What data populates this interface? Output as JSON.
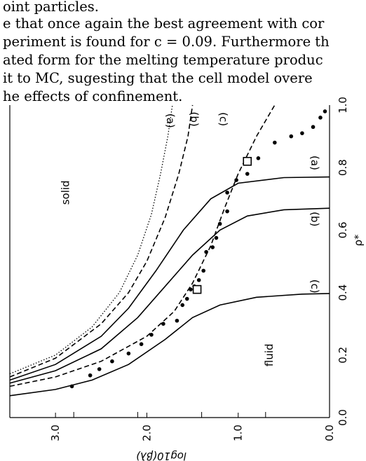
{
  "text_lines": [
    "oint particles.",
    "e that once again the best agreement with cor",
    "periment is found for c = 0.09. Furthermore th",
    "ated form for the melting temperature produc",
    "it to MC, sugesting that the cell model overe",
    "he effects of confinement."
  ],
  "chart_data": {
    "type": "line",
    "orientation": "rotated-90-clockwise",
    "xlabel": "log10(βλ)",
    "ylabel": "ρ*",
    "xlim": [
      3.5,
      0.0
    ],
    "ylim": [
      0.0,
      1.0
    ],
    "x_ticks": [
      "3.0",
      "2.0",
      "1.0",
      "0.0"
    ],
    "x_tick_values": [
      3.0,
      2.0,
      1.0,
      0.0
    ],
    "y_ticks": [
      "0.0",
      "0.2",
      "0.4",
      "0.6",
      "0.8",
      "1.0"
    ],
    "y_tick_values": [
      0.0,
      0.2,
      0.4,
      0.6,
      0.8,
      1.0
    ],
    "region_labels": [
      "solid",
      "fluid"
    ],
    "curve_labels": [
      {
        "text": "(a)",
        "x": 0.2,
        "y": 0.815
      },
      {
        "text": "(b)",
        "x": 0.2,
        "y": 0.635
      },
      {
        "text": "(c)",
        "x": 0.2,
        "y": 0.42
      },
      {
        "text": "(a)",
        "x": 1.78,
        "y": 0.95
      },
      {
        "text": "(b)",
        "x": 1.52,
        "y": 0.955
      },
      {
        "text": "(c)",
        "x": 1.2,
        "y": 0.955
      }
    ],
    "series": [
      {
        "style": "solid",
        "points": [
          [
            3.5,
            0.07
          ],
          [
            3.0,
            0.09
          ],
          [
            2.6,
            0.12
          ],
          [
            2.2,
            0.17
          ],
          [
            1.8,
            0.25
          ],
          [
            1.5,
            0.32
          ],
          [
            1.2,
            0.36
          ],
          [
            0.8,
            0.385
          ],
          [
            0.3,
            0.395
          ],
          [
            0.0,
            0.397
          ]
        ]
      },
      {
        "style": "solid",
        "points": [
          [
            3.5,
            0.11
          ],
          [
            3.0,
            0.15
          ],
          [
            2.5,
            0.22
          ],
          [
            2.1,
            0.32
          ],
          [
            1.8,
            0.42
          ],
          [
            1.5,
            0.52
          ],
          [
            1.2,
            0.6
          ],
          [
            0.9,
            0.645
          ],
          [
            0.5,
            0.665
          ],
          [
            0.0,
            0.67
          ]
        ]
      },
      {
        "style": "solid",
        "points": [
          [
            3.5,
            0.12
          ],
          [
            3.0,
            0.17
          ],
          [
            2.5,
            0.26
          ],
          [
            2.2,
            0.35
          ],
          [
            1.9,
            0.47
          ],
          [
            1.6,
            0.6
          ],
          [
            1.3,
            0.7
          ],
          [
            1.0,
            0.75
          ],
          [
            0.5,
            0.768
          ],
          [
            0.0,
            0.77
          ]
        ]
      },
      {
        "style": "dashed",
        "points": [
          [
            3.5,
            0.1
          ],
          [
            3.0,
            0.13
          ],
          [
            2.5,
            0.18
          ],
          [
            2.0,
            0.26
          ],
          [
            1.7,
            0.34
          ],
          [
            1.5,
            0.43
          ],
          [
            1.3,
            0.55
          ],
          [
            1.15,
            0.67
          ],
          [
            1.0,
            0.78
          ],
          [
            0.8,
            0.9
          ],
          [
            0.6,
            1.0
          ]
        ]
      },
      {
        "style": "dashed",
        "points": [
          [
            3.5,
            0.13
          ],
          [
            3.0,
            0.19
          ],
          [
            2.5,
            0.3
          ],
          [
            2.2,
            0.4
          ],
          [
            2.0,
            0.5
          ],
          [
            1.8,
            0.64
          ],
          [
            1.65,
            0.78
          ],
          [
            1.55,
            0.9
          ],
          [
            1.5,
            1.0
          ]
        ]
      },
      {
        "style": "dotted",
        "points": [
          [
            3.5,
            0.14
          ],
          [
            3.0,
            0.2
          ],
          [
            2.6,
            0.29
          ],
          [
            2.3,
            0.4
          ],
          [
            2.1,
            0.52
          ],
          [
            1.95,
            0.65
          ],
          [
            1.85,
            0.78
          ],
          [
            1.77,
            0.9
          ],
          [
            1.72,
            1.0
          ]
        ]
      },
      {
        "style": "dots",
        "points": [
          [
            2.82,
            0.1
          ],
          [
            2.62,
            0.135
          ],
          [
            2.52,
            0.155
          ],
          [
            2.38,
            0.18
          ],
          [
            2.2,
            0.205
          ],
          [
            2.06,
            0.235
          ],
          [
            1.95,
            0.265
          ],
          [
            1.82,
            0.3
          ],
          [
            1.67,
            0.31
          ],
          [
            1.61,
            0.36
          ],
          [
            1.56,
            0.38
          ],
          [
            1.52,
            0.41
          ],
          [
            1.48,
            0.42
          ],
          [
            1.43,
            0.44
          ],
          [
            1.38,
            0.47
          ],
          [
            1.35,
            0.53
          ],
          [
            1.28,
            0.545
          ],
          [
            1.24,
            0.575
          ],
          [
            1.2,
            0.62
          ],
          [
            1.12,
            0.66
          ],
          [
            1.12,
            0.72
          ],
          [
            1.02,
            0.76
          ],
          [
            0.9,
            0.78
          ],
          [
            0.78,
            0.83
          ],
          [
            0.6,
            0.88
          ],
          [
            0.42,
            0.9
          ],
          [
            0.3,
            0.91
          ],
          [
            0.18,
            0.93
          ],
          [
            0.1,
            0.96
          ],
          [
            0.05,
            0.98
          ]
        ]
      },
      {
        "style": "squares",
        "points": [
          [
            1.45,
            0.41
          ],
          [
            0.9,
            0.82
          ]
        ]
      }
    ]
  }
}
